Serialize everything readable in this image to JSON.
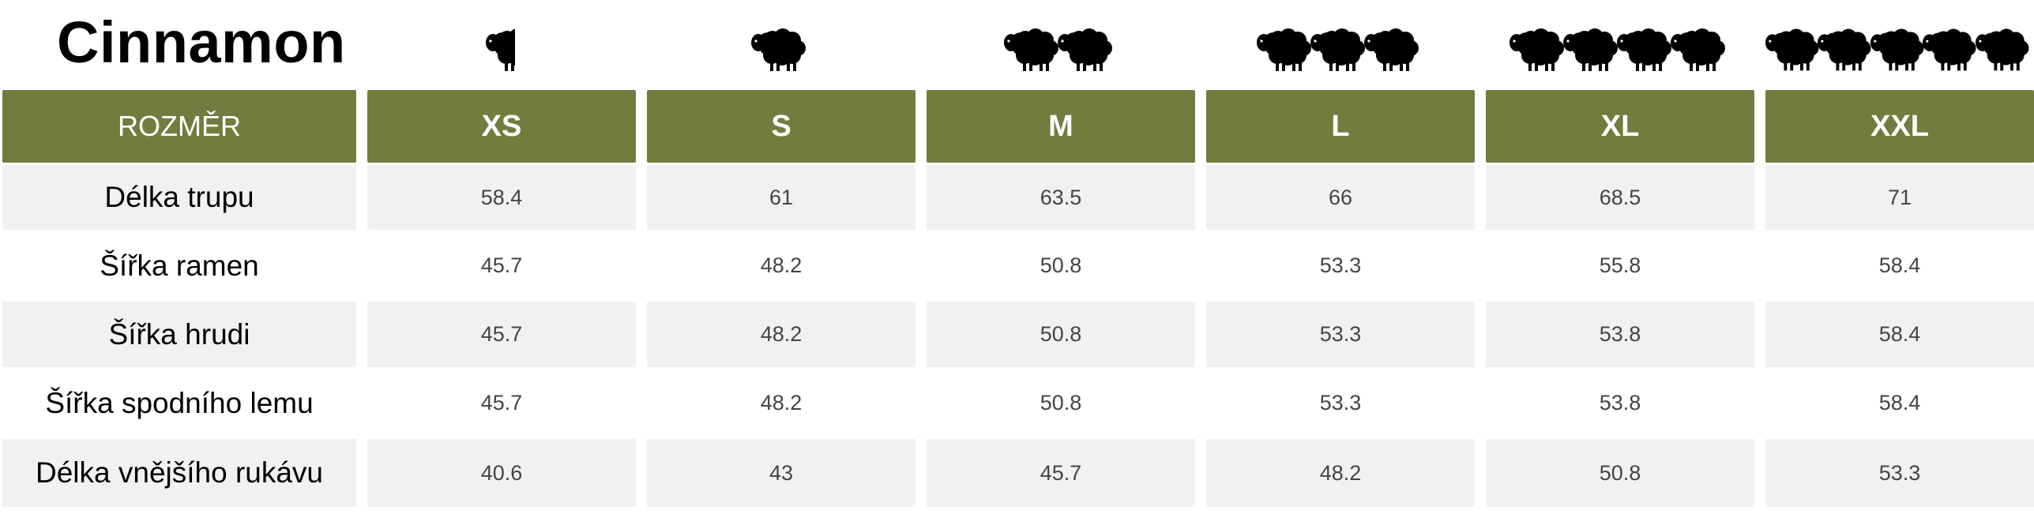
{
  "title": "Cinnamon",
  "sheep_icon": "sheep-icon",
  "sheep_counts": [
    0.5,
    1,
    2,
    3,
    4,
    5
  ],
  "header": {
    "label": "ROZMĚR",
    "sizes": [
      "XS",
      "S",
      "M",
      "L",
      "XL",
      "XXL"
    ]
  },
  "rows": [
    {
      "label": "Délka trupu",
      "values": [
        "58.4",
        "61",
        "63.5",
        "66",
        "68.5",
        "71"
      ]
    },
    {
      "label": "Šířka ramen",
      "values": [
        "45.7",
        "48.2",
        "50.8",
        "53.3",
        "55.8",
        "58.4"
      ]
    },
    {
      "label": "Šířka hrudi",
      "values": [
        "45.7",
        "48.2",
        "50.8",
        "53.3",
        "53.8",
        "58.4"
      ]
    },
    {
      "label": "Šířka spodního lemu",
      "values": [
        "45.7",
        "48.2",
        "50.8",
        "53.3",
        "53.8",
        "58.4"
      ]
    },
    {
      "label": "Délka vnějšího rukávu",
      "values": [
        "40.6",
        "43",
        "45.7",
        "48.2",
        "50.8",
        "53.3"
      ]
    }
  ],
  "colors": {
    "header_bg": "#727c3e",
    "shaded_row": "#f1f1f3",
    "sheep": "#000000"
  }
}
